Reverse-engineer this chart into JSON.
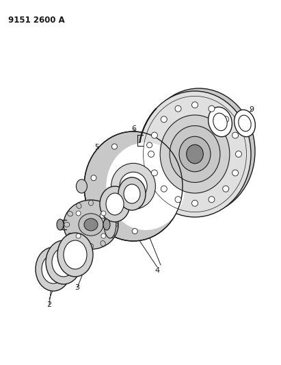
{
  "title": "9151 2600 A",
  "background_color": "#ffffff",
  "line_color": "#1a1a1a",
  "fig_width": 4.11,
  "fig_height": 5.33,
  "dpi": 100,
  "gray_light": "#c8c8c8",
  "gray_mid": "#b0b0b0",
  "gray_dark": "#888888"
}
